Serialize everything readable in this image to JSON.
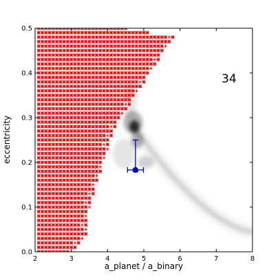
{
  "chart_data": {
    "type": "scatter",
    "xlabel": "a_planet / a_binary",
    "ylabel": "eccentricity",
    "xlim": [
      2,
      8
    ],
    "ylim": [
      0.0,
      0.5
    ],
    "x_ticks": [
      "2",
      "3",
      "4",
      "5",
      "6",
      "7",
      "8"
    ],
    "y_ticks": [
      "0.0",
      "0.1",
      "0.2",
      "0.3",
      "0.4",
      "0.5"
    ],
    "annotation": "34",
    "grid": false,
    "unstable_marker_color": "#ff0000",
    "measured_point": {
      "x": 4.77,
      "y": 0.183,
      "x_err": [
        0.22,
        0.22
      ],
      "y_err": [
        0.004,
        0.067
      ],
      "color": "#0000cc"
    },
    "unstable_boundary": {
      "x_step": 0.1,
      "y_step": 0.01,
      "x_start": 2.1,
      "edge": [
        [
          2.1,
          0.5
        ],
        [
          4.55,
          0.5
        ],
        [
          5.8,
          0.48
        ],
        [
          4.2,
          0.28
        ],
        [
          3.5,
          0.1
        ],
        [
          3.4,
          0.04
        ],
        [
          3.0,
          0.0
        ]
      ]
    },
    "density_contour": {
      "peak": [
        4.72,
        0.28
      ],
      "tail_end": [
        8.0,
        0.045
      ],
      "color": "#000000"
    }
  }
}
